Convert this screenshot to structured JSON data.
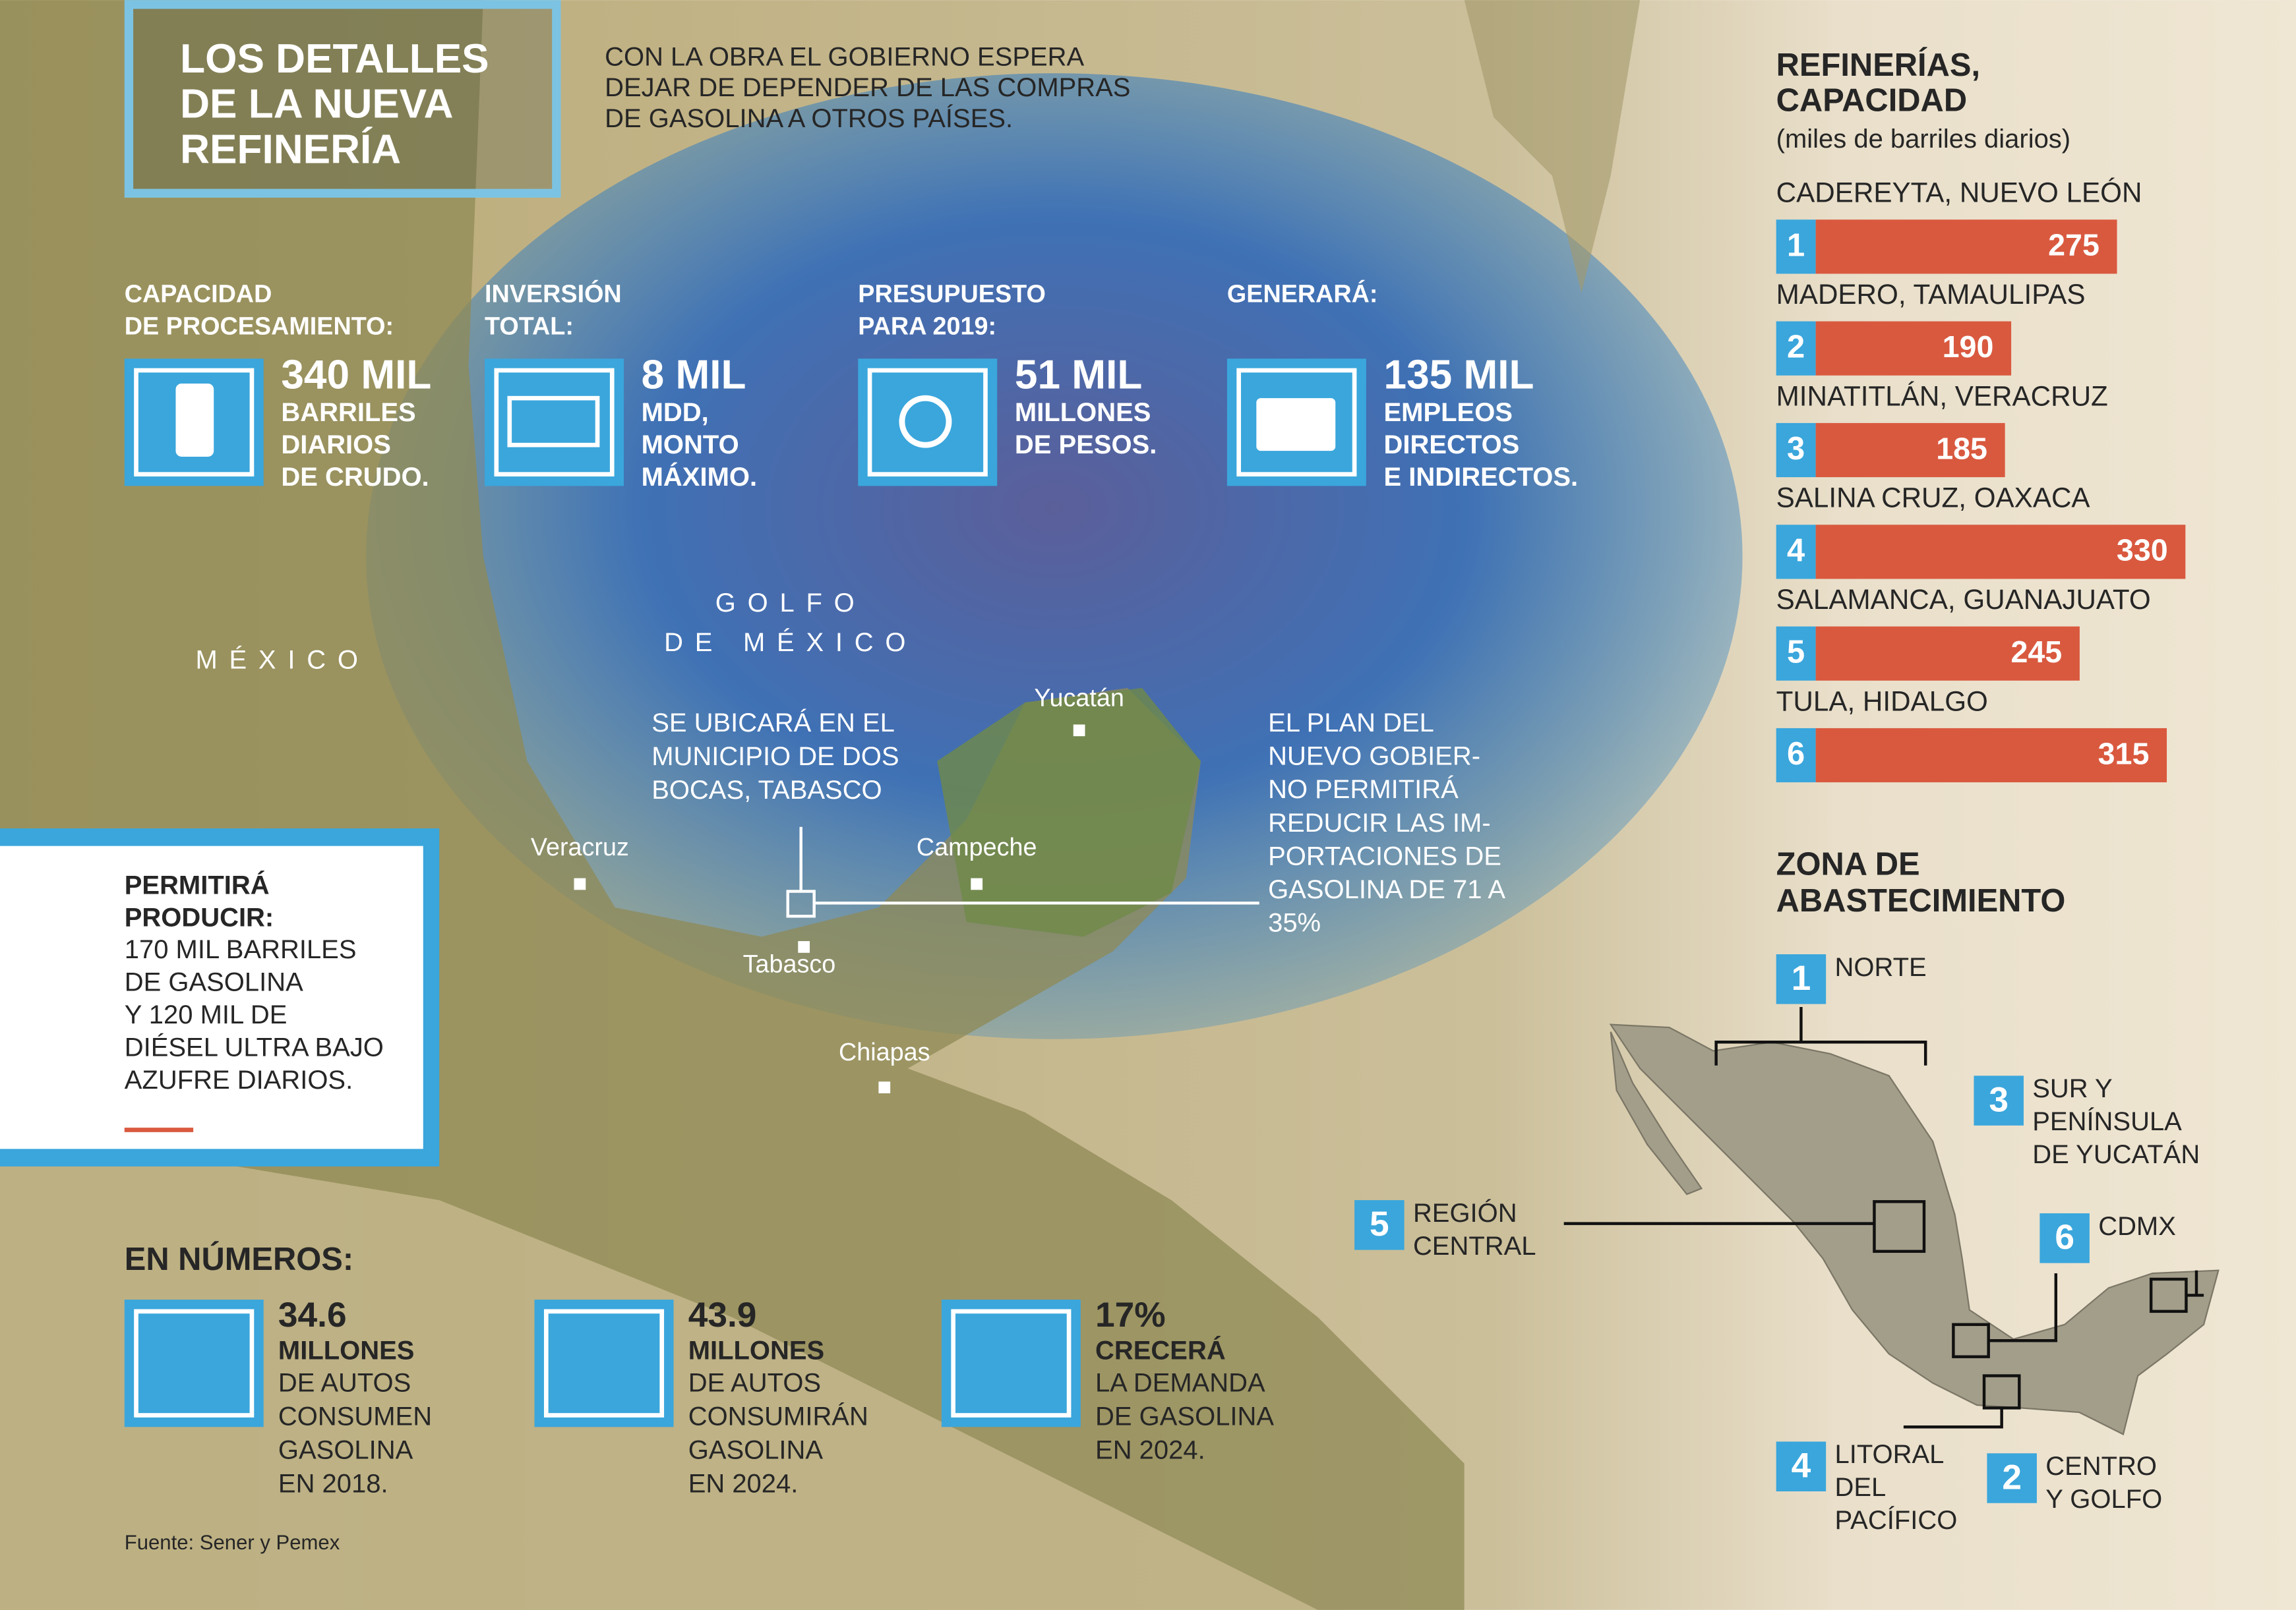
{
  "header": {
    "title": [
      "LOS DETALLES",
      "DE LA NUEVA",
      "REFINERÍA"
    ],
    "intro": [
      "CON LA OBRA EL GOBIERNO ESPERA",
      "DEJAR DE DEPENDER DE LAS COMPRAS",
      "DE GASOLINA A OTROS PAÍSES."
    ]
  },
  "stats": [
    {
      "label": [
        "CAPACIDAD",
        "DE PROCESAMIENTO:"
      ],
      "value": "340 MIL",
      "detail": [
        "BARRILES",
        "DIARIOS",
        "DE CRUDO."
      ]
    },
    {
      "label": [
        "INVERSIÓN",
        "TOTAL:"
      ],
      "value": "8 MIL",
      "detail": [
        "MDD,",
        "MONTO",
        "MÁXIMO."
      ]
    },
    {
      "label": [
        "PRESUPUESTO",
        "PARA 2019:"
      ],
      "value": "51 MIL",
      "detail": [
        "MILLONES",
        "DE PESOS."
      ]
    },
    {
      "label": [
        "GENERARÁ:"
      ],
      "value": "135 MIL",
      "detail": [
        "EMPLEOS",
        "DIRECTOS",
        "E INDIRECTOS."
      ]
    }
  ],
  "map": {
    "gulf": [
      "GOLFO",
      "DE MÉXICO"
    ],
    "country": "MÉXICO",
    "cities": [
      "Yucatán",
      "Veracruz",
      "Campeche",
      "Tabasco",
      "Chiapas"
    ],
    "location_note": [
      "SE UBICARÁ EN EL",
      "MUNICIPIO DE DOS",
      "BOCAS, TABASCO"
    ],
    "plan_note": [
      "EL PLAN DEL",
      "NUEVO GOBIER-",
      "NO PERMITIRÁ",
      "REDUCIR LAS IM-",
      "PORTACIONES DE",
      "GASOLINA DE 71 A",
      "35%"
    ]
  },
  "production": {
    "title": [
      "PERMITIRÁ",
      "PRODUCIR:"
    ],
    "text": [
      "170 MIL BARRILES",
      "DE GASOLINA",
      "Y 120 MIL DE",
      "DIÉSEL ULTRA BAJO",
      "AZUFRE DIARIOS."
    ]
  },
  "numbers": {
    "title": "EN NÚMEROS:",
    "items": [
      {
        "value": "34.6",
        "label": "MILLONES",
        "text": [
          "DE AUTOS",
          "CONSUMEN",
          "GASOLINA",
          "EN 2018."
        ]
      },
      {
        "value": "43.9",
        "label": "MILLONES",
        "text": [
          "DE AUTOS",
          "CONSUMIRÁN",
          "GASOLINA",
          "EN 2024."
        ]
      },
      {
        "value": "17%",
        "label": "CRECERÁ",
        "text": [
          "LA DEMANDA",
          "DE GASOLINA",
          "EN 2024."
        ]
      }
    ]
  },
  "source": "Fuente: Sener y Pemex",
  "refineries": {
    "title": [
      "REFINERÍAS,",
      "CAPACIDAD"
    ],
    "subtitle": "(miles de barriles diarios)",
    "items": [
      {
        "rank": "1",
        "name": "CADEREYTA, NUEVO LEÓN",
        "value": 275
      },
      {
        "rank": "2",
        "name": "MADERO, TAMAULIPAS",
        "value": 190
      },
      {
        "rank": "3",
        "name": "MINATITLÁN, VERACRUZ",
        "value": 185
      },
      {
        "rank": "4",
        "name": "SALINA CRUZ, OAXACA",
        "value": 330
      },
      {
        "rank": "5",
        "name": "SALAMANCA, GUANAJUATO",
        "value": 245
      },
      {
        "rank": "6",
        "name": "TULA, HIDALGO",
        "value": 315
      }
    ]
  },
  "zones": {
    "title": [
      "ZONA DE",
      "ABASTECIMIENTO"
    ],
    "items": [
      {
        "number": "1",
        "label": [
          "NORTE"
        ]
      },
      {
        "number": "3",
        "label": [
          "SUR Y",
          "PENÍNSULA",
          "DE YUCATÁN"
        ]
      },
      {
        "number": "5",
        "label": [
          "REGIÓN",
          "CENTRAL"
        ]
      },
      {
        "number": "6",
        "label": [
          "CDMX"
        ]
      },
      {
        "number": "4",
        "label": [
          "LITORAL",
          "DEL",
          "PACÍFICO"
        ]
      },
      {
        "number": "2",
        "label": [
          "CENTRO",
          "Y GOLFO"
        ]
      }
    ]
  }
}
